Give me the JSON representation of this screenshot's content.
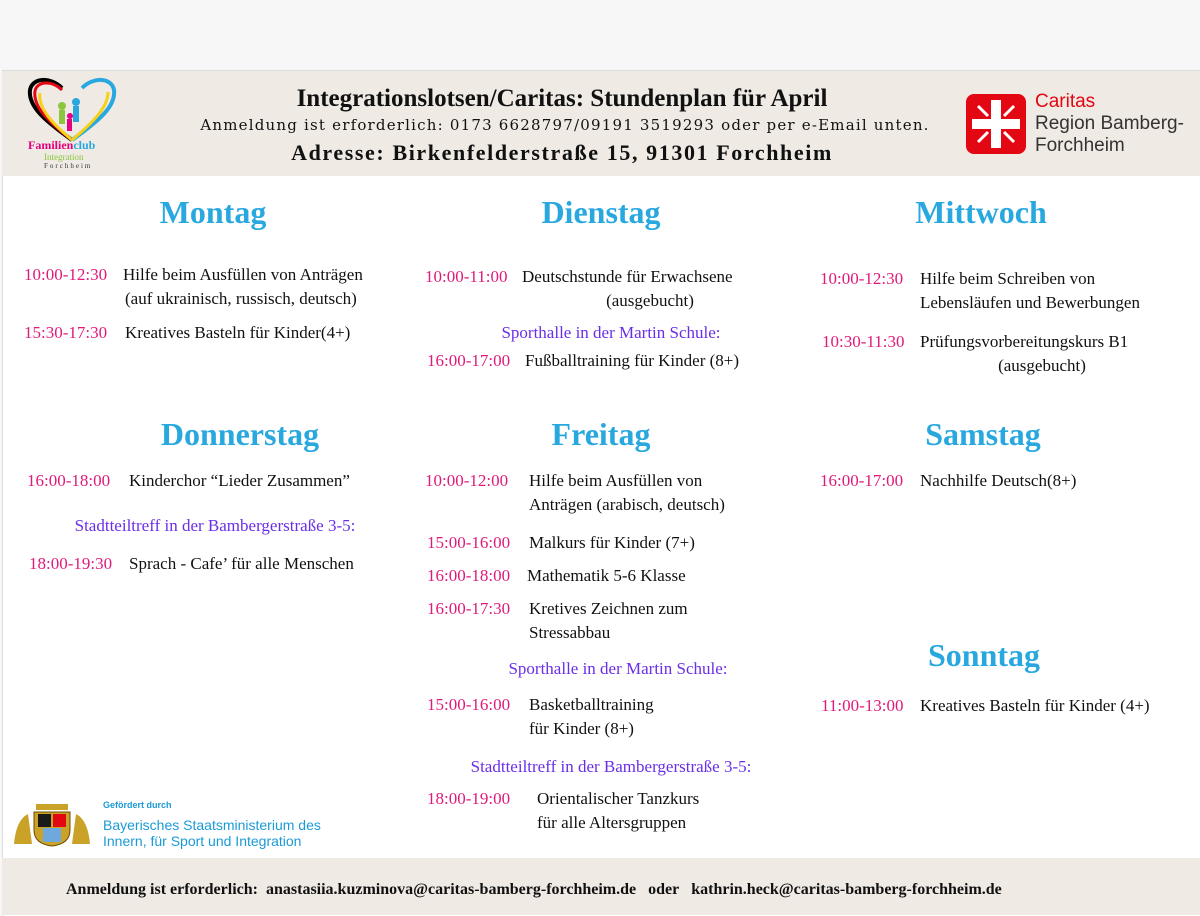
{
  "header": {
    "title": "Integrationslotsen/Caritas: Stundenplan für April",
    "subtitle": "Anmeldung ist erforderlich: 0173 6628797/09191 3519293 oder per e-Email unten.",
    "address": "Adresse: Birkenfelderstraße 15, 91301 Forchheim",
    "logo_left": {
      "line1a": "Familien",
      "line1b": "club",
      "line2": "Integration",
      "line3": "Forchheim"
    },
    "logo_right": {
      "name": "Caritas",
      "line2": "Region Bamberg-",
      "line3": "Forchheim",
      "color": "#e30613"
    }
  },
  "colors": {
    "day": "#29a8e0",
    "time": "#e0197a",
    "location": "#6a2ee8"
  },
  "days": {
    "mon": {
      "name": "Montag",
      "e": [
        {
          "time": "10:00-12:30",
          "l1": "Hilfe beim Ausfüllen von Anträgen",
          "l2": "(auf ukrainisch, russisch, deutsch)"
        },
        {
          "time": "15:30-17:30",
          "l1": "Kreatives Basteln für Kinder(4+)"
        }
      ]
    },
    "tue": {
      "name": "Dienstag",
      "e": [
        {
          "time": "10:00-11:00",
          "l1": "Deutschstunde für Erwachsene",
          "l2": "(ausgebucht)"
        },
        {
          "time": "16:00-17:00",
          "l1": "Fußballtraining für Kinder (8+)"
        }
      ],
      "note": "Sporthalle in der Martin Schule:"
    },
    "wed": {
      "name": "Mittwoch",
      "e": [
        {
          "time": "10:00-12:30",
          "l1": "Hilfe beim Schreiben von",
          "l2": "Lebensläufen und Bewerbungen"
        },
        {
          "time": "10:30-11:30",
          "l1": "Prüfungsvorbereitungskurs B1",
          "l2": "(ausgebucht)"
        }
      ]
    },
    "thu": {
      "name": "Donnerstag",
      "e": [
        {
          "time": "16:00-18:00",
          "l1": "Kinderchor “Lieder Zusammen”"
        },
        {
          "time": "18:00-19:30",
          "l1": "Sprach - Cafe’ für alle Menschen"
        }
      ],
      "note": "Stadtteiltreff in der Bambergerstraße 3-5:"
    },
    "fri": {
      "name": "Freitag",
      "e": [
        {
          "time": "10:00-12:00",
          "l1": "Hilfe beim Ausfüllen von",
          "l2": "Anträgen (arabisch, deutsch)"
        },
        {
          "time": "15:00-16:00",
          "l1": "Malkurs für Kinder (7+)"
        },
        {
          "time": "16:00-18:00",
          "l1": "Mathematik 5-6 Klasse"
        },
        {
          "time": "16:00-17:30",
          "l1": "Kretives Zeichnen zum",
          "l2": "Stressabbau"
        },
        {
          "time": "15:00-16:00",
          "l1": "Basketballtraining",
          "l2": "für Kinder (8+)"
        },
        {
          "time": "18:00-19:00",
          "l1": "Orientalischer Tanzkurs",
          "l2": "für alle Altersgruppen"
        }
      ],
      "note1": "Sporthalle in der Martin Schule:",
      "note2": "Stadtteiltreff in der Bambergerstraße 3-5:"
    },
    "sat": {
      "name": "Samstag",
      "e": [
        {
          "time": "16:00-17:00",
          "l1": "Nachhilfe Deutsch(8+)"
        }
      ]
    },
    "sun": {
      "name": "Sonntag",
      "e": [
        {
          "time": "11:00-13:00",
          "l1": "Kreatives Basteln für Kinder (4+)"
        }
      ]
    }
  },
  "sponsor": {
    "label": "Gefördert durch",
    "line1": "Bayerisches Staatsministerium des",
    "line2": "Innern, für Sport und Integration"
  },
  "footer": {
    "prefix": "Anmeldung ist erforderlich:",
    "email1": "anastasiia.kuzminova@caritas-bamberg-forchheim.de",
    "or": "oder",
    "email2": "kathrin.heck@caritas-bamberg-forchheim.de"
  }
}
